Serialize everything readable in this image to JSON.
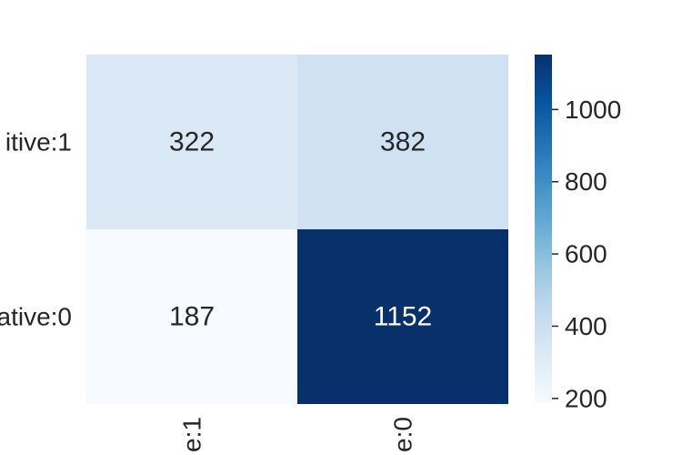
{
  "chart_data": {
    "type": "heatmap",
    "title": "",
    "xlabel": "",
    "ylabel": "",
    "row_labels": [
      "itive:1",
      "ative:0"
    ],
    "col_labels": [
      "e:1",
      "e:0"
    ],
    "values": [
      [
        322,
        382
      ],
      [
        187,
        1152
      ]
    ],
    "colormap": "Blues",
    "colorbar": {
      "range": [
        187,
        1152
      ],
      "ticks": [
        200,
        400,
        600,
        800,
        1000
      ],
      "tick_labels": [
        "200",
        "400",
        "600",
        "800",
        "1000"
      ]
    }
  }
}
